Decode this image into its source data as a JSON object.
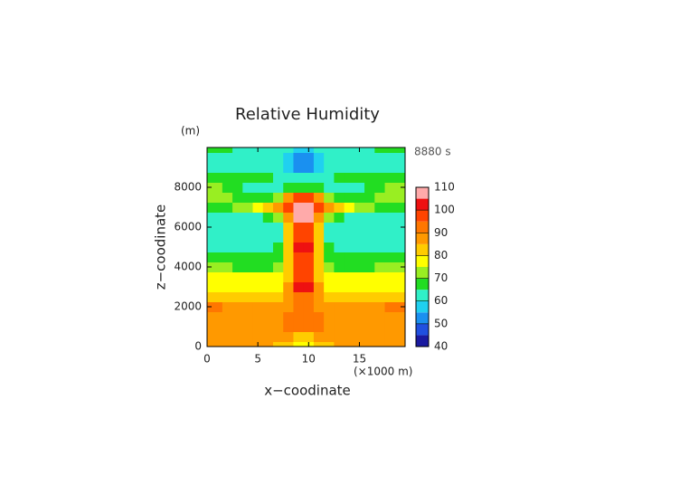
{
  "chart_data": {
    "type": "contour",
    "title": "Relative Humidity",
    "y_unit": "(m)",
    "time_label": "8880 s",
    "x_unit": "(×1000 m)",
    "xlabel": "x−coodinate",
    "ylabel": "z−coodinate",
    "xlim": [
      0,
      19.5
    ],
    "ylim": [
      0,
      10000
    ],
    "xticks": [
      0,
      5,
      10,
      15
    ],
    "yticks": [
      0,
      2000,
      4000,
      6000,
      8000
    ],
    "x": [
      0,
      1,
      2,
      3,
      4,
      5,
      6,
      7,
      8,
      9,
      10,
      11,
      12,
      13,
      14,
      15,
      16,
      17,
      18,
      19
    ],
    "y": [
      0,
      500,
      1000,
      1500,
      2000,
      2500,
      3000,
      3500,
      4000,
      4500,
      5000,
      5500,
      6000,
      6500,
      7000,
      7500,
      8000,
      8500,
      9000,
      9500,
      10000
    ],
    "z": [
      [
        86,
        86,
        88,
        88,
        88,
        86,
        86,
        84,
        80,
        76,
        76,
        80,
        84,
        86,
        86,
        88,
        88,
        88,
        86,
        86
      ],
      [
        88,
        88,
        88,
        87,
        87,
        87,
        87,
        88,
        86,
        84,
        84,
        86,
        88,
        87,
        87,
        87,
        87,
        88,
        88,
        88
      ],
      [
        86,
        86,
        86,
        86,
        86,
        86,
        86,
        88,
        92,
        90,
        90,
        92,
        88,
        86,
        86,
        86,
        86,
        86,
        86,
        86
      ],
      [
        86,
        86,
        86,
        86,
        86,
        86,
        86,
        86,
        90,
        90,
        90,
        90,
        86,
        86,
        86,
        86,
        86,
        86,
        86,
        86
      ],
      [
        92,
        90,
        86,
        86,
        86,
        86,
        86,
        86,
        88,
        90,
        90,
        88,
        86,
        86,
        86,
        86,
        86,
        86,
        90,
        92
      ],
      [
        82,
        82,
        82,
        82,
        82,
        82,
        82,
        82,
        86,
        92,
        92,
        86,
        82,
        82,
        82,
        82,
        82,
        82,
        82,
        82
      ],
      [
        77,
        77,
        77,
        77,
        77,
        77,
        77,
        79,
        86,
        101,
        101,
        86,
        79,
        77,
        77,
        77,
        77,
        77,
        77,
        77
      ],
      [
        76,
        76,
        76,
        76,
        76,
        76,
        75,
        75,
        80,
        95,
        95,
        80,
        75,
        76,
        76,
        76,
        76,
        76,
        76,
        76
      ],
      [
        72,
        72,
        70,
        68,
        68,
        68,
        68,
        70,
        82,
        96,
        96,
        82,
        70,
        68,
        68,
        68,
        68,
        70,
        72,
        72
      ],
      [
        66,
        66,
        66,
        66,
        66,
        66,
        66,
        68,
        80,
        98,
        98,
        80,
        68,
        66,
        66,
        66,
        66,
        66,
        66,
        66
      ],
      [
        62,
        62,
        62,
        62,
        62,
        62,
        62,
        66,
        80,
        101,
        101,
        80,
        66,
        62,
        62,
        62,
        62,
        62,
        62,
        62
      ],
      [
        62,
        62,
        62,
        62,
        62,
        62,
        62,
        64,
        80,
        96,
        96,
        80,
        64,
        62,
        62,
        62,
        62,
        62,
        62,
        62
      ],
      [
        62,
        62,
        62,
        62,
        62,
        62,
        62,
        64,
        80,
        98,
        98,
        80,
        64,
        62,
        62,
        62,
        62,
        62,
        62,
        62
      ],
      [
        62,
        62,
        62,
        62,
        62,
        64,
        66,
        72,
        88,
        106,
        106,
        88,
        72,
        66,
        64,
        62,
        62,
        62,
        62,
        62
      ],
      [
        66,
        66,
        68,
        70,
        72,
        76,
        82,
        88,
        98,
        106,
        106,
        98,
        88,
        82,
        76,
        72,
        70,
        68,
        66,
        66
      ],
      [
        72,
        72,
        70,
        68,
        66,
        66,
        66,
        70,
        86,
        96,
        96,
        86,
        70,
        66,
        66,
        66,
        68,
        70,
        72,
        72
      ],
      [
        72,
        72,
        68,
        66,
        64,
        62,
        62,
        62,
        66,
        68,
        68,
        66,
        62,
        62,
        62,
        64,
        66,
        68,
        72,
        72
      ],
      [
        66,
        66,
        66,
        66,
        66,
        66,
        66,
        64,
        62,
        62,
        62,
        62,
        64,
        66,
        66,
        66,
        66,
        66,
        66,
        66
      ],
      [
        62,
        62,
        62,
        62,
        62,
        62,
        62,
        60,
        57,
        52,
        52,
        57,
        60,
        62,
        62,
        62,
        62,
        62,
        62,
        62
      ],
      [
        64,
        64,
        62,
        62,
        62,
        62,
        62,
        60,
        57,
        52,
        52,
        57,
        60,
        62,
        62,
        62,
        62,
        62,
        64,
        64
      ],
      [
        66,
        66,
        66,
        62,
        62,
        62,
        62,
        62,
        60,
        58,
        58,
        60,
        62,
        62,
        62,
        62,
        62,
        66,
        66,
        66
      ]
    ],
    "levels": [
      40,
      45,
      50,
      55,
      60,
      65,
      70,
      75,
      80,
      85,
      90,
      95,
      100,
      105,
      110
    ],
    "colors": [
      "#1a1aa0",
      "#2050e0",
      "#1a90f0",
      "#20d0f0",
      "#30f0c8",
      "#22dd22",
      "#99ee22",
      "#ffff00",
      "#ffcc00",
      "#ff9900",
      "#ff7700",
      "#ff4400",
      "#ee1111",
      "#ffaaaa"
    ],
    "cticks": [
      40,
      50,
      60,
      70,
      80,
      90,
      100,
      110
    ]
  }
}
